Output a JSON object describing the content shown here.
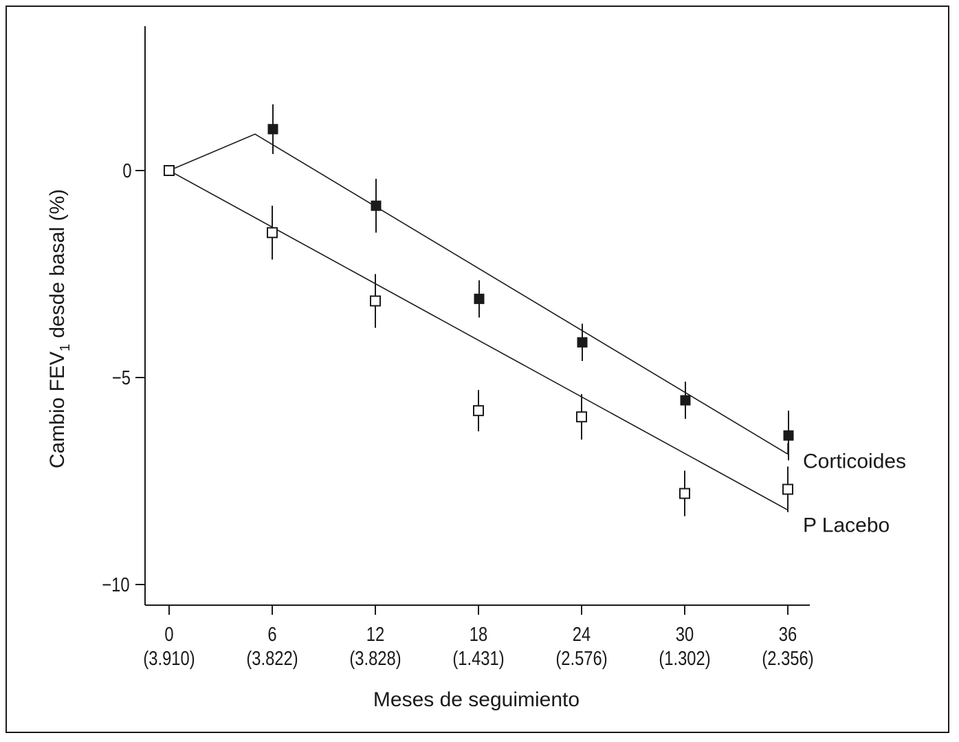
{
  "chart_data": {
    "type": "scatter",
    "title": "",
    "xlabel": "Meses de seguimiento",
    "ylabel": {
      "prefix": "Cambio FEV",
      "subscript": "1",
      "suffix": " desde basal (%)"
    },
    "xlim": [
      0,
      36
    ],
    "ylim": [
      -10.5,
      3.4
    ],
    "x_ticks": [
      {
        "value": 0,
        "label": "0",
        "sublabel": "(3.910)"
      },
      {
        "value": 6,
        "label": "6",
        "sublabel": "(3.822)"
      },
      {
        "value": 12,
        "label": "12",
        "sublabel": "(3.828)"
      },
      {
        "value": 18,
        "label": "18",
        "sublabel": "(1.431)"
      },
      {
        "value": 24,
        "label": "24",
        "sublabel": "(2.576)"
      },
      {
        "value": 30,
        "label": "30",
        "sublabel": "(1.302)"
      },
      {
        "value": 36,
        "label": "36",
        "sublabel": "(2.356)"
      }
    ],
    "y_ticks": [
      {
        "value": 0,
        "label": "0"
      },
      {
        "value": -5,
        "label": "−5"
      },
      {
        "value": -10,
        "label": "−10"
      }
    ],
    "grid": false,
    "series": [
      {
        "name": "Corticoides",
        "marker": "filled-square",
        "color": "#1a1a1a",
        "points": [
          {
            "x": 0,
            "y": 0.0,
            "err": 0
          },
          {
            "x": 6,
            "y": 1.0,
            "err": 0.6
          },
          {
            "x": 12,
            "y": -0.85,
            "err": 0.65
          },
          {
            "x": 18,
            "y": -3.1,
            "err": 0.45
          },
          {
            "x": 24,
            "y": -4.15,
            "err": 0.45
          },
          {
            "x": 30,
            "y": -5.55,
            "err": 0.45
          },
          {
            "x": 36,
            "y": -6.4,
            "err": 0.6
          }
        ],
        "fit_line": [
          [
            0,
            0.0
          ],
          [
            5,
            0.88
          ],
          [
            36,
            -6.85
          ]
        ]
      },
      {
        "name": "P Lacebo",
        "marker": "open-square",
        "color": "#1a1a1a",
        "points": [
          {
            "x": 0,
            "y": 0.0,
            "err": 0
          },
          {
            "x": 6,
            "y": -1.5,
            "err": 0.65
          },
          {
            "x": 12,
            "y": -3.15,
            "err": 0.65
          },
          {
            "x": 18,
            "y": -5.8,
            "err": 0.5
          },
          {
            "x": 24,
            "y": -5.95,
            "err": 0.55
          },
          {
            "x": 30,
            "y": -7.8,
            "err": 0.55
          },
          {
            "x": 36,
            "y": -7.7,
            "err": 0.55
          }
        ],
        "fit_line": [
          [
            0,
            0.0
          ],
          [
            36,
            -8.2
          ]
        ]
      }
    ]
  }
}
